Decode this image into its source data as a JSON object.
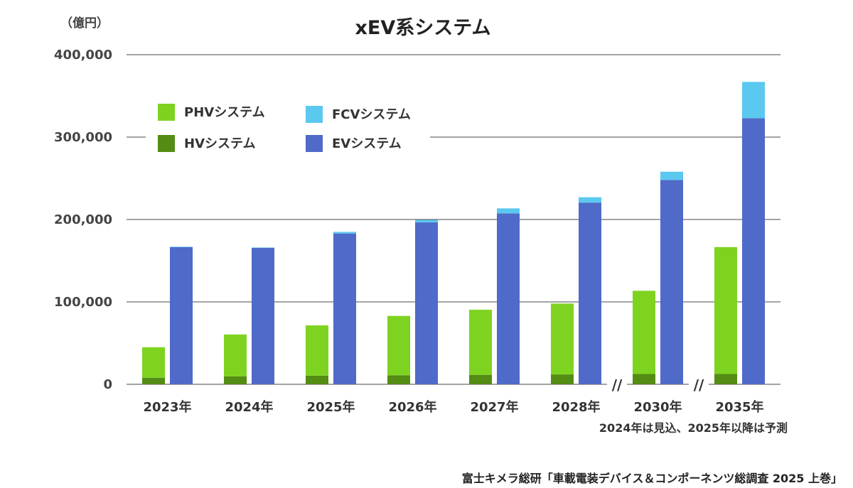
{
  "chart_data": {
    "type": "bar",
    "title": "xEV系システム",
    "unit_label": "（億円）",
    "categories": [
      "2023年",
      "2024年",
      "2025年",
      "2026年",
      "2027年",
      "2028年",
      "2030年",
      "2035年"
    ],
    "ylim": [
      0,
      400000
    ],
    "yticks": [
      "0",
      "100,000",
      "200,000",
      "300,000",
      "400,000"
    ],
    "ytick_values": [
      0,
      100000,
      200000,
      300000,
      400000
    ],
    "grid": true,
    "stacked": true,
    "axis_breaks_before": [
      "2030年",
      "2035年"
    ],
    "axis_break_symbol": "//",
    "series": [
      {
        "name": "HVシステム",
        "stack": "left",
        "color": "#548c14",
        "values": [
          8000,
          9500,
          10500,
          11000,
          11500,
          12000,
          12500,
          12500
        ]
      },
      {
        "name": "PHVシステム",
        "stack": "left",
        "color": "#7ed321",
        "values": [
          37000,
          51000,
          61000,
          72000,
          79000,
          86000,
          101000,
          154000
        ]
      },
      {
        "name": "EVシステム",
        "stack": "right",
        "color": "#4f6ac8",
        "values": [
          166500,
          165500,
          183000,
          196500,
          207500,
          220500,
          248000,
          323000
        ]
      },
      {
        "name": "FCVシステム",
        "stack": "right",
        "color": "#5bc8f0",
        "values": [
          500,
          500,
          2000,
          3000,
          6000,
          6500,
          10000,
          44000
        ]
      }
    ],
    "legend": [
      {
        "name": "PHVシステム",
        "color": "#7ed321"
      },
      {
        "name": "FCVシステム",
        "color": "#5bc8f0"
      },
      {
        "name": "HVシステム",
        "color": "#548c14"
      },
      {
        "name": "EVシステム",
        "color": "#4f6ac8"
      }
    ],
    "legend_position": "top-left",
    "note": "2024年は見込、2025年以降は予測"
  },
  "source": "富士キメラ総研「車載電装デバイス＆コンポーネンツ総調査 2025 上巻」"
}
